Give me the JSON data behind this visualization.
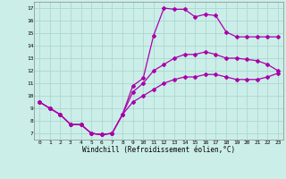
{
  "xlabel": "Windchill (Refroidissement éolien,°C)",
  "bg_color": "#cceee8",
  "grid_color": "#aad8d0",
  "line_color": "#aa00aa",
  "marker": "D",
  "markersize": 2.0,
  "linewidth": 0.9,
  "xlim": [
    -0.5,
    23.5
  ],
  "ylim": [
    6.5,
    17.5
  ],
  "xticks": [
    0,
    1,
    2,
    3,
    4,
    5,
    6,
    7,
    8,
    9,
    10,
    11,
    12,
    13,
    14,
    15,
    16,
    17,
    18,
    19,
    20,
    21,
    22,
    23
  ],
  "yticks": [
    7,
    8,
    9,
    10,
    11,
    12,
    13,
    14,
    15,
    16,
    17
  ],
  "line1_x": [
    0,
    1,
    2,
    3,
    4,
    5,
    6,
    7,
    8,
    9,
    10,
    11,
    12,
    13,
    14,
    15,
    16,
    17,
    18,
    19,
    20,
    21,
    22,
    23
  ],
  "line1_y": [
    9.5,
    9.0,
    8.5,
    7.7,
    7.7,
    7.0,
    6.9,
    7.0,
    8.5,
    10.8,
    11.4,
    14.8,
    17.0,
    16.9,
    16.9,
    16.3,
    16.5,
    16.4,
    15.1,
    14.7,
    14.7,
    14.7,
    14.7,
    14.7
  ],
  "line2_x": [
    0,
    1,
    2,
    3,
    4,
    5,
    6,
    7,
    8,
    9,
    10,
    11,
    12,
    13,
    14,
    15,
    16,
    17,
    18,
    19,
    20,
    21,
    22,
    23
  ],
  "line2_y": [
    9.5,
    9.0,
    8.5,
    7.7,
    7.7,
    7.0,
    6.9,
    7.0,
    8.5,
    10.3,
    11.0,
    12.0,
    12.5,
    13.0,
    13.3,
    13.3,
    13.5,
    13.3,
    13.0,
    13.0,
    12.9,
    12.8,
    12.5,
    12.0
  ],
  "line3_x": [
    0,
    1,
    2,
    3,
    4,
    5,
    6,
    7,
    8,
    9,
    10,
    11,
    12,
    13,
    14,
    15,
    16,
    17,
    18,
    19,
    20,
    21,
    22,
    23
  ],
  "line3_y": [
    9.5,
    9.0,
    8.5,
    7.7,
    7.7,
    7.0,
    6.9,
    7.0,
    8.5,
    9.5,
    10.0,
    10.5,
    11.0,
    11.3,
    11.5,
    11.5,
    11.7,
    11.7,
    11.5,
    11.3,
    11.3,
    11.3,
    11.5,
    11.8
  ]
}
